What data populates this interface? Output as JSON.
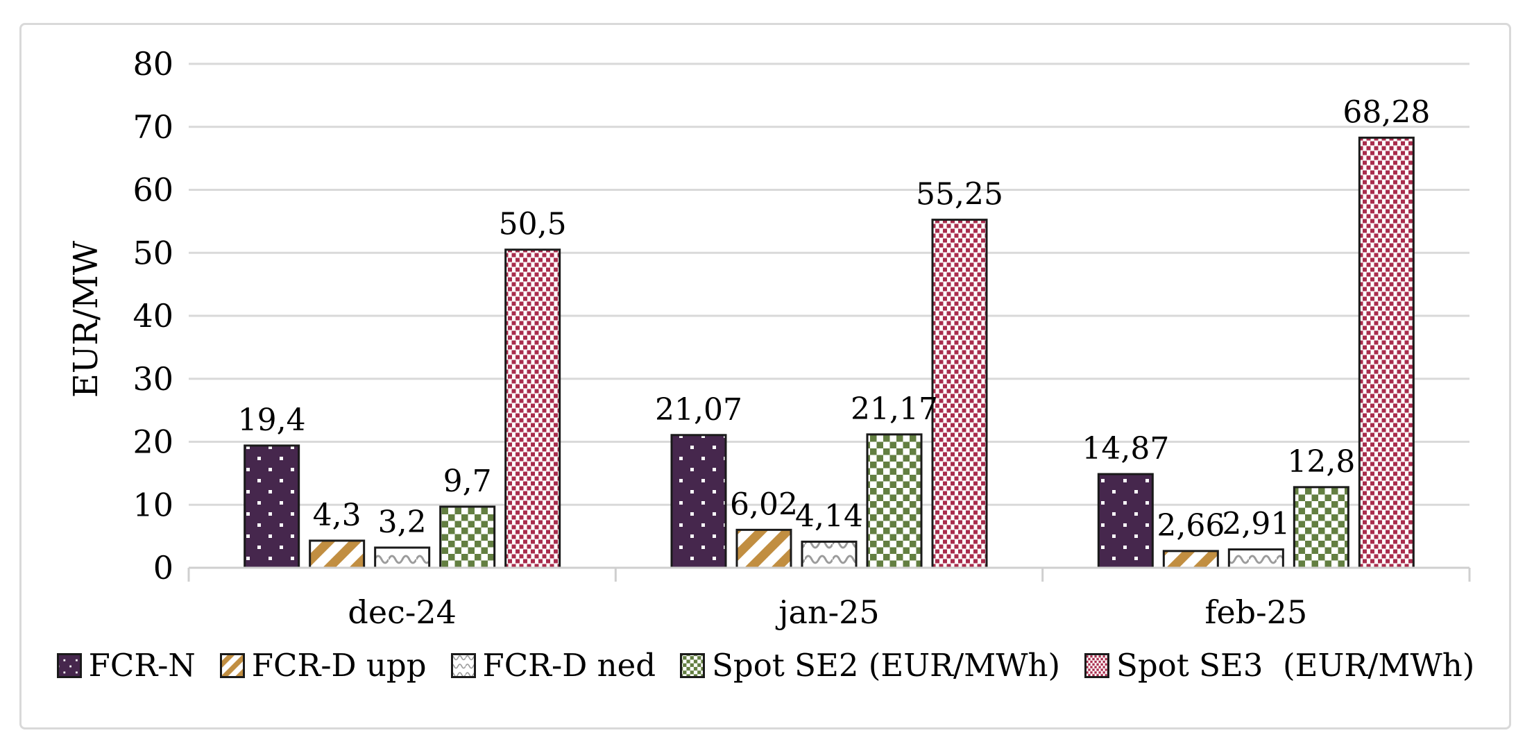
{
  "chart_data": {
    "type": "bar",
    "title": "",
    "xlabel": "",
    "ylabel": "EUR/MW",
    "ylim": [
      0,
      80
    ],
    "yticks": [
      0,
      10,
      20,
      30,
      40,
      50,
      60,
      70,
      80
    ],
    "grid": true,
    "legend_position": "bottom",
    "decimal_separator": ",",
    "data_labels": true,
    "categories": [
      "dec-24",
      "jan-25",
      "feb-25"
    ],
    "series": [
      {
        "name": "FCR-N",
        "values": [
          19.4,
          21.07,
          14.87
        ],
        "labels": [
          "19,4",
          "21,07",
          "14,87"
        ],
        "color": "#46274d",
        "pattern": "white-dots-on-solid"
      },
      {
        "name": "FCR-D upp",
        "values": [
          4.3,
          6.02,
          2.66
        ],
        "labels": [
          "4,3",
          "6,02",
          "2,66"
        ],
        "color": "#c18e41",
        "pattern": "diagonal-stripes"
      },
      {
        "name": "FCR-D ned",
        "values": [
          3.2,
          4.14,
          2.91
        ],
        "labels": [
          "3,2",
          "4,14",
          "2,91"
        ],
        "color": "#9b9b9b",
        "pattern": "waves"
      },
      {
        "name": "Spot SE2 (EUR/MWh)",
        "values": [
          9.7,
          21.17,
          12.8
        ],
        "labels": [
          "9,7",
          "21,17",
          "12,8"
        ],
        "color": "#637f41",
        "pattern": "checker"
      },
      {
        "name": "Spot SE3  (EUR/MWh)",
        "values": [
          50.5,
          55.25,
          68.28
        ],
        "labels": [
          "50,5",
          "55,25",
          "68,28"
        ],
        "color": "#a82c4c",
        "pattern": "offset-dots"
      }
    ]
  },
  "styles": {
    "background": "#ffffff",
    "frame_border": "#d9d9d9",
    "gridline": "#d9d9d9",
    "axis_line": "#cfcfcf",
    "bar_border": "#1a1a1a",
    "text": "#000000"
  }
}
